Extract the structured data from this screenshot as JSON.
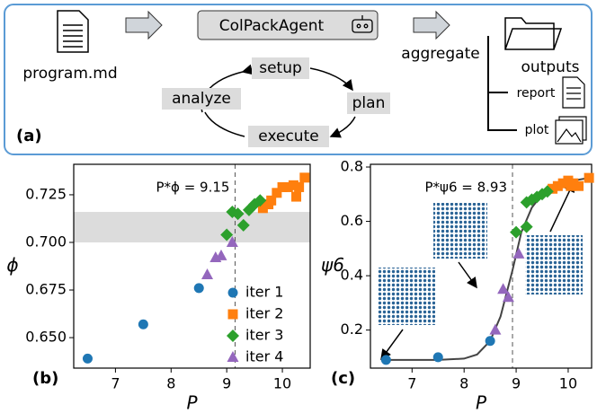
{
  "diagram": {
    "panel_label": "(a)",
    "input": "program.md",
    "agent": "ColPackAgent",
    "loop": {
      "setup": "setup",
      "plan": "plan",
      "execute": "execute",
      "analyze": "analyze"
    },
    "aggregate": "aggregate",
    "outputs": "outputs",
    "report": "report",
    "plot": "plot"
  },
  "chart_data": [
    {
      "type": "scatter",
      "panel_label": "(b)",
      "x_label": "P",
      "y_label": "ϕ",
      "xlim": [
        6.25,
        10.5
      ],
      "ylim": [
        0.634,
        0.741
      ],
      "xticks": [
        7,
        8,
        9,
        10
      ],
      "yticks": [
        {
          "value": 0.65,
          "label": "0.650"
        },
        0.675,
        {
          "value": 0.7,
          "label": "0.700"
        },
        0.725
      ],
      "band": [
        0.7,
        0.716
      ],
      "band_color": "#dcdcdc",
      "vline": {
        "value": 9.15,
        "label": "P*ϕ = 9.15"
      },
      "legend": "lower right",
      "series": [
        {
          "name": "iter 1",
          "color": "#1f77b4",
          "marker": "circle",
          "x": [
            6.5,
            7.5,
            8.5
          ],
          "values": [
            0.639,
            0.657,
            0.676
          ]
        },
        {
          "name": "iter 2",
          "color": "#ff7f0e",
          "marker": "square",
          "x": [
            9.65,
            9.75,
            9.8,
            9.9,
            10.0,
            10.1,
            10.2,
            10.25,
            10.3,
            10.4
          ],
          "values": [
            0.718,
            0.72,
            0.722,
            0.726,
            0.729,
            0.729,
            0.73,
            0.724,
            0.729,
            0.734
          ]
        },
        {
          "name": "iter 3",
          "color": "#2ca02c",
          "marker": "diamond",
          "x": [
            9.0,
            9.1,
            9.2,
            9.3,
            9.4,
            9.5,
            9.6
          ],
          "values": [
            0.704,
            0.716,
            0.715,
            0.709,
            0.717,
            0.72,
            0.722
          ]
        },
        {
          "name": "iter 4",
          "color": "#9467bd",
          "marker": "triangle",
          "x": [
            8.65,
            8.8,
            8.9,
            9.1
          ],
          "values": [
            0.683,
            0.692,
            0.693,
            0.7
          ]
        }
      ]
    },
    {
      "type": "scatter",
      "panel_label": "(c)",
      "x_label": "P",
      "y_label": "ψ6",
      "xlim": [
        6.2,
        10.45
      ],
      "ylim": [
        0.06,
        0.81
      ],
      "xticks": [
        7,
        8,
        9,
        10
      ],
      "yticks": [
        0.2,
        0.4,
        0.6,
        0.8
      ],
      "vline": {
        "value": 8.93,
        "label": "P*ψ6 = 8.93"
      },
      "fit": {
        "color": "#444444",
        "x": [
          6.5,
          7,
          7.5,
          8,
          8.25,
          8.5,
          8.7,
          8.93,
          9.1,
          9.3,
          9.5,
          9.8,
          10.1,
          10.4
        ],
        "values": [
          0.09,
          0.09,
          0.09,
          0.095,
          0.11,
          0.16,
          0.25,
          0.42,
          0.56,
          0.65,
          0.7,
          0.73,
          0.75,
          0.76
        ]
      },
      "series": [
        {
          "name": "iter 1",
          "color": "#1f77b4",
          "marker": "circle",
          "x": [
            6.5,
            7.5,
            8.5
          ],
          "values": [
            0.09,
            0.1,
            0.16
          ]
        },
        {
          "name": "iter 2",
          "color": "#ff7f0e",
          "marker": "square",
          "x": [
            9.7,
            9.8,
            9.9,
            10.0,
            10.05,
            10.1,
            10.2,
            10.4
          ],
          "values": [
            0.72,
            0.73,
            0.74,
            0.75,
            0.73,
            0.74,
            0.73,
            0.76
          ]
        },
        {
          "name": "iter 3",
          "color": "#2ca02c",
          "marker": "diamond",
          "x": [
            9.0,
            9.2,
            9.2,
            9.3,
            9.4,
            9.5,
            9.6
          ],
          "values": [
            0.56,
            0.58,
            0.67,
            0.68,
            0.69,
            0.7,
            0.71
          ]
        },
        {
          "name": "iter 4",
          "color": "#9467bd",
          "marker": "triangle",
          "x": [
            8.6,
            8.75,
            8.85,
            9.05
          ],
          "values": [
            0.2,
            0.35,
            0.32,
            0.48
          ]
        }
      ]
    }
  ]
}
